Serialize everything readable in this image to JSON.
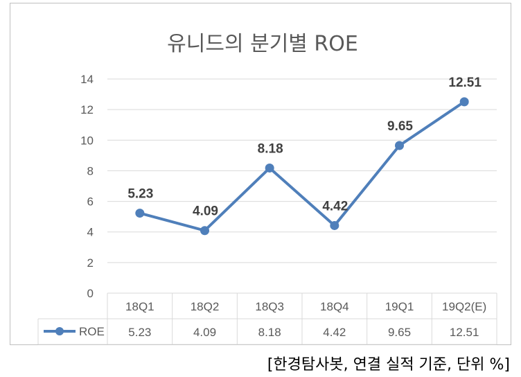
{
  "chart_data": {
    "type": "line",
    "title": "유니드의 분기별 ROE",
    "xlabel": "",
    "ylabel": "",
    "categories": [
      "18Q1",
      "18Q2",
      "18Q3",
      "18Q4",
      "19Q1",
      "19Q2(E)"
    ],
    "series": [
      {
        "name": "ROE",
        "values": [
          5.23,
          4.09,
          8.18,
          4.42,
          9.65,
          12.51
        ],
        "color": "#4f7fba"
      }
    ],
    "ylim": [
      0,
      14
    ],
    "yticks": [
      0,
      2,
      4,
      6,
      8,
      10,
      12,
      14
    ],
    "grid": true,
    "legend": "data-table-left",
    "data_table": true,
    "data_labels": [
      "5.23",
      "4.09",
      "8.18",
      "4.42",
      "9.65",
      "12.51"
    ]
  },
  "source_note": "[한경탐사봇, 연결 실적 기준, 단위 %]",
  "colors": {
    "line": "#4f7fba",
    "grid": "#d9d9d9",
    "text": "#595959",
    "label": "#404040"
  }
}
